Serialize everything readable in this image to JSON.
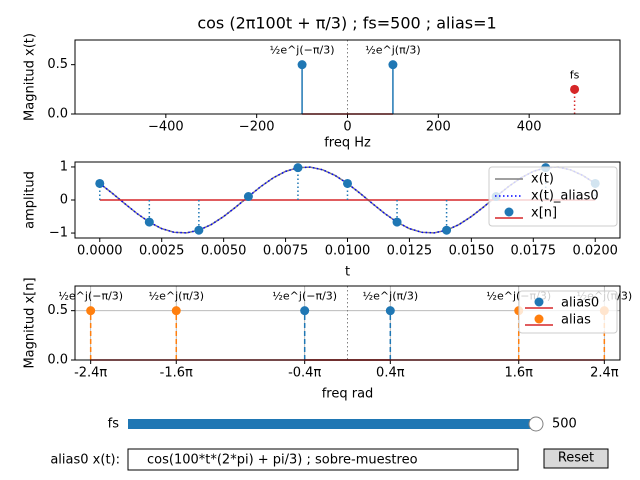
{
  "chart_data": [
    {
      "type": "stem",
      "title": "cos (2π100t + π/3)  ; fs=500  ; alias=1",
      "xlabel": "freq Hz",
      "ylabel": "Magnitud x(t)",
      "xlim": [
        -600,
        600
      ],
      "ylim": [
        0,
        0.75
      ],
      "xticks": [
        {
          "value": -400,
          "label": "−400"
        },
        {
          "value": -200,
          "label": "−200"
        },
        0,
        200,
        400
      ],
      "yticks": [
        {
          "value": 0,
          "label": "0.0"
        },
        0.5
      ],
      "baseline_color": "#d62728",
      "grid": false,
      "series": [
        {
          "color": "#1f77b4",
          "linestyle": "solid",
          "x": [
            -100,
            100
          ],
          "values": [
            0.5,
            0.5
          ],
          "labels": [
            "½e^j(−π/3)",
            "½e^j(π/3)"
          ]
        },
        {
          "color": "#d62728",
          "linestyle": "dotted",
          "x": [
            500
          ],
          "values": [
            0.25
          ],
          "labels": [
            "fs"
          ]
        }
      ]
    },
    {
      "type": "line",
      "xlabel": "t",
      "ylabel": "amplitud",
      "xlim": [
        -0.001,
        0.021
      ],
      "ylim": [
        -1.15,
        1.15
      ],
      "xticks": [
        {
          "value": 0,
          "label": "0.0000"
        },
        {
          "value": 0.0025,
          "label": "0.0025"
        },
        {
          "value": 0.005,
          "label": "0.0050"
        },
        {
          "value": 0.0075,
          "label": "0.0075"
        },
        {
          "value": 0.01,
          "label": "0.0100"
        },
        {
          "value": 0.0125,
          "label": "0.0125"
        },
        {
          "value": 0.015,
          "label": "0.0150"
        },
        {
          "value": 0.0175,
          "label": "0.0175"
        },
        {
          "value": 0.02,
          "label": "0.0200"
        }
      ],
      "yticks": [
        {
          "value": -1,
          "label": "−1"
        },
        0,
        1
      ],
      "baseline_color": "#d62728",
      "legend": "upper right",
      "grid": false,
      "series": [
        {
          "name": "x(t)",
          "color": "#808080",
          "linestyle": "solid",
          "x": [
            0,
            0.0005,
            0.001,
            0.0015,
            0.002,
            0.0025,
            0.003,
            0.0035,
            0.004,
            0.0045,
            0.005,
            0.0055,
            0.006,
            0.0065,
            0.007,
            0.0075,
            0.008,
            0.0085,
            0.009,
            0.0095,
            0.01,
            0.0105,
            0.011,
            0.0115,
            0.012,
            0.0125,
            0.013,
            0.0135,
            0.014,
            0.0145,
            0.015,
            0.0155,
            0.016,
            0.0165,
            0.017,
            0.0175,
            0.018,
            0.0185,
            0.019,
            0.0195,
            0.02
          ],
          "values": [
            0.5,
            0.208,
            -0.105,
            -0.407,
            -0.669,
            -0.866,
            -0.978,
            -0.995,
            -0.914,
            -0.743,
            -0.5,
            -0.208,
            0.105,
            0.407,
            0.669,
            0.866,
            0.978,
            0.995,
            0.914,
            0.743,
            0.5,
            0.208,
            -0.105,
            -0.407,
            -0.669,
            -0.866,
            -0.978,
            -0.995,
            -0.914,
            -0.743,
            -0.5,
            -0.208,
            0.105,
            0.407,
            0.669,
            0.866,
            0.978,
            0.995,
            0.914,
            0.743,
            0.5
          ]
        },
        {
          "name": "x(t)_alias0",
          "color": "#0000ff",
          "linestyle": "dotted",
          "x": [
            0,
            0.0005,
            0.001,
            0.0015,
            0.002,
            0.0025,
            0.003,
            0.0035,
            0.004,
            0.0045,
            0.005,
            0.0055,
            0.006,
            0.0065,
            0.007,
            0.0075,
            0.008,
            0.0085,
            0.009,
            0.0095,
            0.01,
            0.0105,
            0.011,
            0.0115,
            0.012,
            0.0125,
            0.013,
            0.0135,
            0.014,
            0.0145,
            0.015,
            0.0155,
            0.016,
            0.0165,
            0.017,
            0.0175,
            0.018,
            0.0185,
            0.019,
            0.0195,
            0.02
          ],
          "values": [
            0.5,
            0.208,
            -0.105,
            -0.407,
            -0.669,
            -0.866,
            -0.978,
            -0.995,
            -0.914,
            -0.743,
            -0.5,
            -0.208,
            0.105,
            0.407,
            0.669,
            0.866,
            0.978,
            0.995,
            0.914,
            0.743,
            0.5,
            0.208,
            -0.105,
            -0.407,
            -0.669,
            -0.866,
            -0.978,
            -0.995,
            -0.914,
            -0.743,
            -0.5,
            -0.208,
            0.105,
            0.407,
            0.669,
            0.866,
            0.978,
            0.995,
            0.914,
            0.743,
            0.5
          ]
        },
        {
          "name": "x[n]",
          "color": "#1f77b4",
          "linestyle": "stem-dotted",
          "x": [
            0,
            0.002,
            0.004,
            0.006,
            0.008,
            0.01,
            0.012,
            0.014,
            0.016,
            0.018,
            0.02
          ],
          "values": [
            0.5,
            -0.669,
            -0.914,
            0.105,
            0.978,
            0.5,
            -0.669,
            -0.914,
            0.105,
            0.978,
            0.5
          ]
        }
      ]
    },
    {
      "type": "stem",
      "xlabel": "freq rad",
      "ylabel": "Magnitud x[n]",
      "xlim": [
        -8,
        8
      ],
      "ylim": [
        0,
        0.75
      ],
      "xticks": [
        {
          "value": -7.54,
          "label": "-2.4π"
        },
        {
          "value": -5.027,
          "label": "-1.6π"
        },
        {
          "value": -1.257,
          "label": "-0.4π"
        },
        {
          "value": 1.257,
          "label": "0.4π"
        },
        {
          "value": 5.027,
          "label": "1.6π"
        },
        {
          "value": 7.54,
          "label": "2.4π"
        }
      ],
      "yticks": [
        {
          "value": 0,
          "label": "0.0"
        },
        0.5
      ],
      "baseline_color": "#d62728",
      "legend": "upper right",
      "grid": true,
      "series": [
        {
          "name": "alias0",
          "color": "#1f77b4",
          "linestyle": "dashed",
          "x": [
            -1.257,
            1.257
          ],
          "values": [
            0.5,
            0.5
          ],
          "labels": [
            "½e^j(−π/3)",
            "½e^j(π/3)"
          ]
        },
        {
          "name": "alias",
          "color": "#ff7f0e",
          "linestyle": "dashed",
          "x": [
            -7.54,
            -5.027,
            5.027,
            7.54
          ],
          "values": [
            0.5,
            0.5,
            0.5,
            0.5
          ],
          "labels": [
            "½e^j(−π/3)",
            "½e^j(π/3)",
            "½e^j(−π/3)",
            "½e^j(π/3)"
          ]
        }
      ]
    }
  ],
  "controls": {
    "slider": {
      "label": "fs",
      "value": 500,
      "range": [
        0,
        500
      ],
      "value_label": "500"
    },
    "textbox": {
      "label": "alias0 x(t):",
      "text": "cos(100*t*(2*pi) + pi/3) ; sobre-muestreo"
    },
    "button": {
      "label": "Reset"
    }
  }
}
